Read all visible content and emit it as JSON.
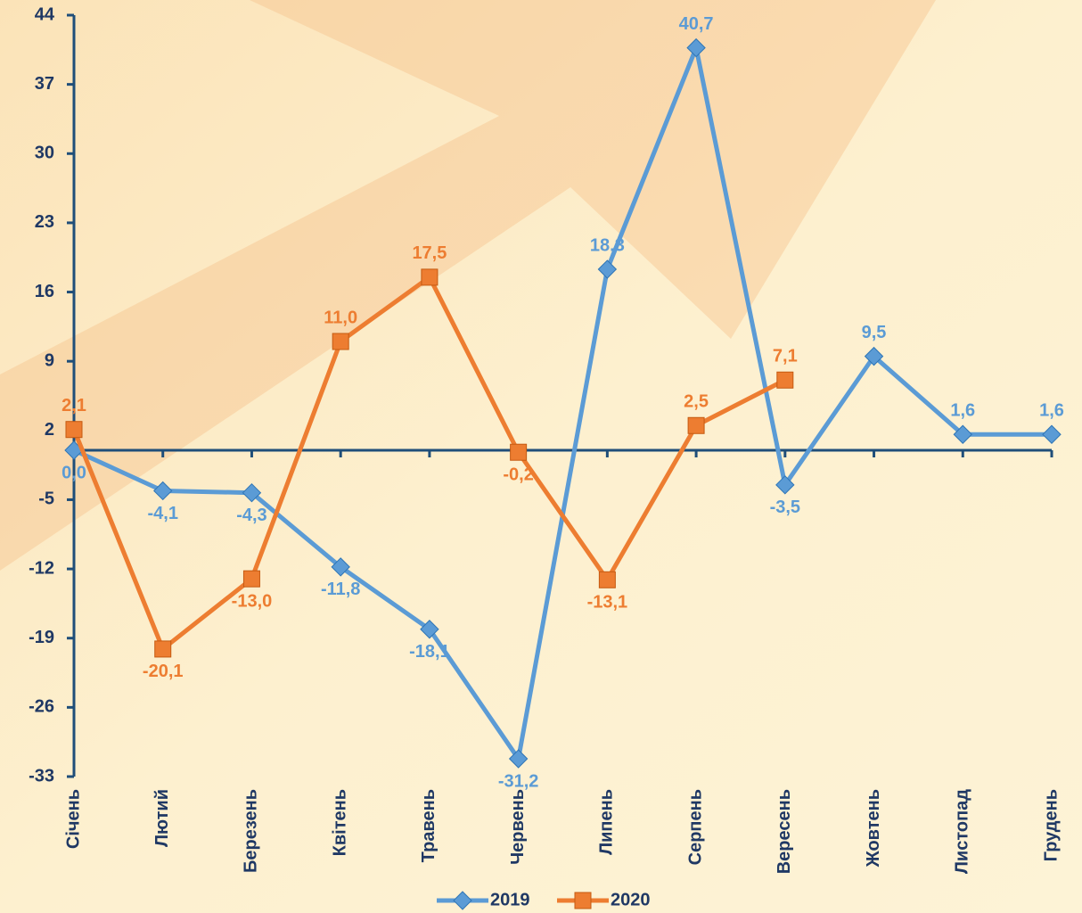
{
  "chart_data": {
    "type": "line",
    "categories": [
      "Січень",
      "Лютий",
      "Березень",
      "Квітень",
      "Травень",
      "Червень",
      "Липень",
      "Серпень",
      "Вересень",
      "Жовтень",
      "Листопад",
      "Грудень"
    ],
    "series": [
      {
        "name": "2019",
        "color": "#5b9bd5",
        "marker": "diamond",
        "values": [
          0.0,
          -4.1,
          -4.3,
          -11.8,
          -18.1,
          -31.2,
          18.3,
          40.7,
          -3.5,
          9.5,
          1.6,
          1.6
        ],
        "value_labels": [
          "0,0",
          "-4,1",
          "-4,3",
          "-11,8",
          "-18,1",
          "-31,2",
          "18,3",
          "40,7",
          "-3,5",
          "9,5",
          "1,6",
          "1,6"
        ]
      },
      {
        "name": "2020",
        "color": "#ed7d31",
        "marker": "square",
        "values": [
          2.1,
          -20.1,
          -13.0,
          11.0,
          17.5,
          -0.2,
          -13.1,
          2.5,
          7.1,
          null,
          null,
          null
        ],
        "value_labels": [
          "2,1",
          "-20,1",
          "-13,0",
          "11,0",
          "17,5",
          "-0,2",
          "-13,1",
          "2,5",
          "7,1",
          null,
          null,
          null
        ]
      }
    ],
    "ylim": [
      -33,
      44
    ],
    "yticks": [
      -33,
      -26,
      -19,
      -12,
      -5,
      2,
      9,
      16,
      23,
      30,
      37,
      44
    ],
    "legend": "bottom"
  }
}
